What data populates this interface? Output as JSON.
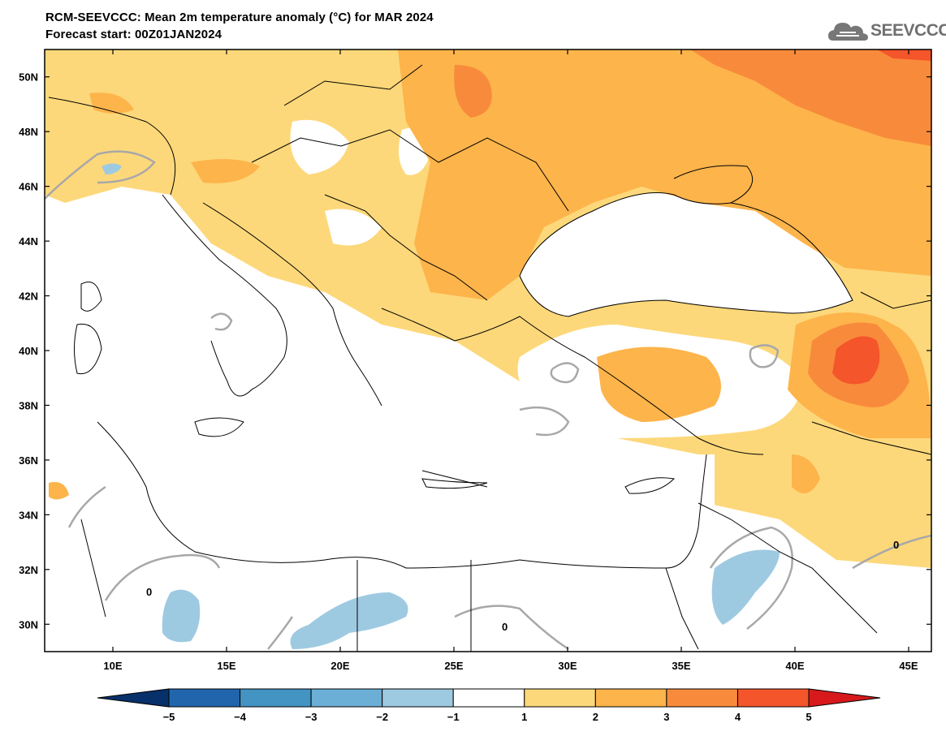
{
  "header": {
    "title": "RCM-SEEVCCC: Mean 2m temperature anomaly (°C) for MAR 2024",
    "subtitle": "Forecast start: 00Z01JAN2024",
    "logo_text": "SEEVCCC"
  },
  "map": {
    "lon_range": [
      7,
      46
    ],
    "lat_range": [
      29,
      51
    ],
    "lon_ticks": [
      "10E",
      "15E",
      "20E",
      "25E",
      "30E",
      "35E",
      "40E",
      "45E"
    ],
    "lat_ticks": [
      "50N",
      "48N",
      "46N",
      "44N",
      "42N",
      "40N",
      "38N",
      "36N",
      "34N",
      "32N",
      "30N"
    ],
    "contour_label": "0"
  },
  "colorbar": {
    "labels": [
      "-5",
      "-4",
      "-3",
      "-2",
      "-1",
      "1",
      "2",
      "3",
      "4",
      "5"
    ],
    "colors": [
      "#08306b",
      "#2166ac",
      "#4393c3",
      "#6baed6",
      "#9ecae1",
      "#ffffff",
      "#fdd87a",
      "#fdb44b",
      "#f88b3b",
      "#f4552a",
      "#d7191c"
    ]
  }
}
